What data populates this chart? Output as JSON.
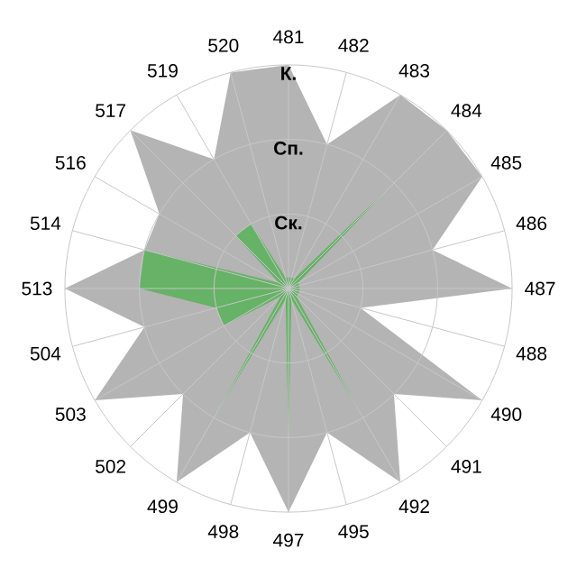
{
  "chart_data": {
    "type": "radar",
    "categories": [
      "481",
      "482",
      "483",
      "484",
      "485",
      "486",
      "487",
      "488",
      "490",
      "491",
      "492",
      "495",
      "497",
      "498",
      "499",
      "502",
      "503",
      "504",
      "513",
      "514",
      "516",
      "517",
      "519",
      "520"
    ],
    "series": [
      {
        "color": "#b4b4b4",
        "values": [
          3,
          2,
          3,
          3,
          3,
          2,
          3,
          1,
          3,
          2,
          3,
          2,
          3,
          2,
          3,
          2,
          3,
          2,
          3,
          2,
          2,
          3,
          2,
          3
        ]
      },
      {
        "color": "#66b266",
        "values": [
          0.15,
          0.15,
          0.15,
          2,
          0.15,
          0.15,
          0.15,
          0.15,
          0.15,
          0.15,
          2,
          0.15,
          2,
          0.15,
          2,
          0.15,
          1,
          1,
          2,
          2,
          0.15,
          1,
          1,
          0.15
        ]
      }
    ],
    "ylim": [
      0,
      3
    ],
    "yticks": [
      {
        "value": 1,
        "label": "Ск."
      },
      {
        "value": 2,
        "label": "Сп."
      },
      {
        "value": 3,
        "label": "К."
      }
    ],
    "grid": true
  }
}
